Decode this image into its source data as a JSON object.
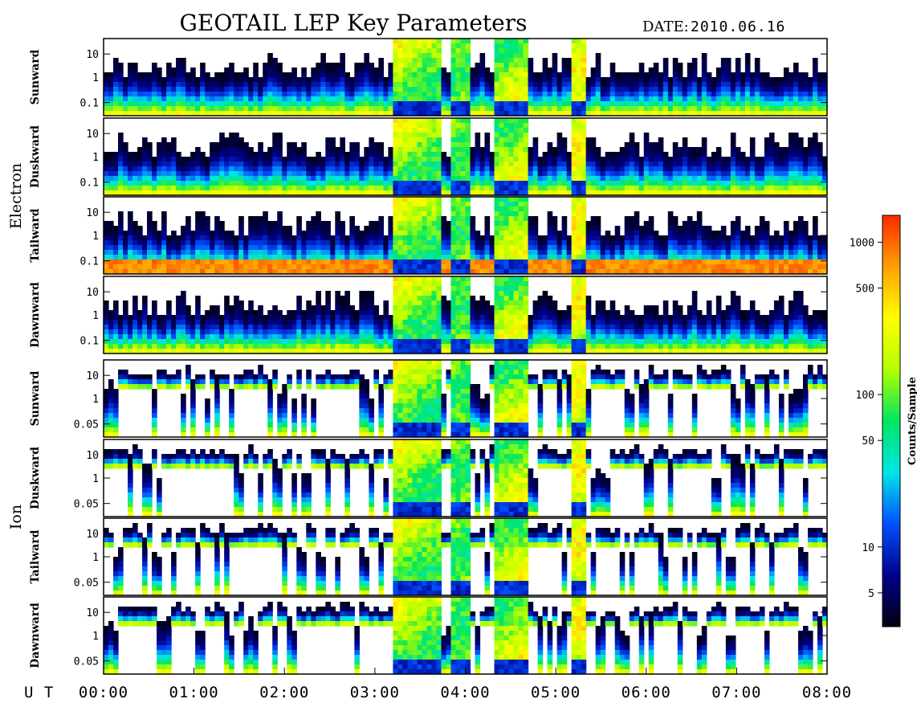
{
  "header": {
    "title": "GEOTAIL LEP Key Parameters",
    "date_label": "DATE:",
    "date_value": "2010.06.16"
  },
  "chart_data": {
    "type": "heatmap",
    "title": "GEOTAIL LEP Key Parameters",
    "date": "2010.06.16",
    "x_axis": {
      "label": "U T",
      "range": [
        "00:00",
        "08:00"
      ],
      "ticks": [
        "00:00",
        "01:00",
        "02:00",
        "03:00",
        "04:00",
        "05:00",
        "06:00",
        "07:00",
        "08:00"
      ]
    },
    "y_axis_scale": "log",
    "groups": [
      {
        "name": "Electron",
        "y_ticks": [
          "10",
          "1",
          "0.1"
        ],
        "y_range": [
          0.05,
          30
        ],
        "panels": [
          "Sunward",
          "Duskward",
          "Tailward",
          "Dawnward"
        ]
      },
      {
        "name": "Ion",
        "y_ticks": [
          "10",
          "1",
          "0.05"
        ],
        "y_range": [
          0.04,
          30
        ],
        "panels": [
          "Sunward",
          "Duskward",
          "Tailward",
          "Dawnward"
        ]
      }
    ],
    "colorbar": {
      "label": "Counts/Sample",
      "scale": "log",
      "range": [
        3,
        1500
      ],
      "ticks": [
        "1000",
        "500",
        "100",
        "50",
        "10",
        "5"
      ],
      "tick_values": [
        1000,
        500,
        100,
        50,
        10,
        5
      ],
      "colormap": [
        "#000010",
        "#00008c",
        "#0050ff",
        "#00e6e6",
        "#00e660",
        "#b4ff00",
        "#ffff00",
        "#ffa000",
        "#ff2800"
      ]
    }
  }
}
